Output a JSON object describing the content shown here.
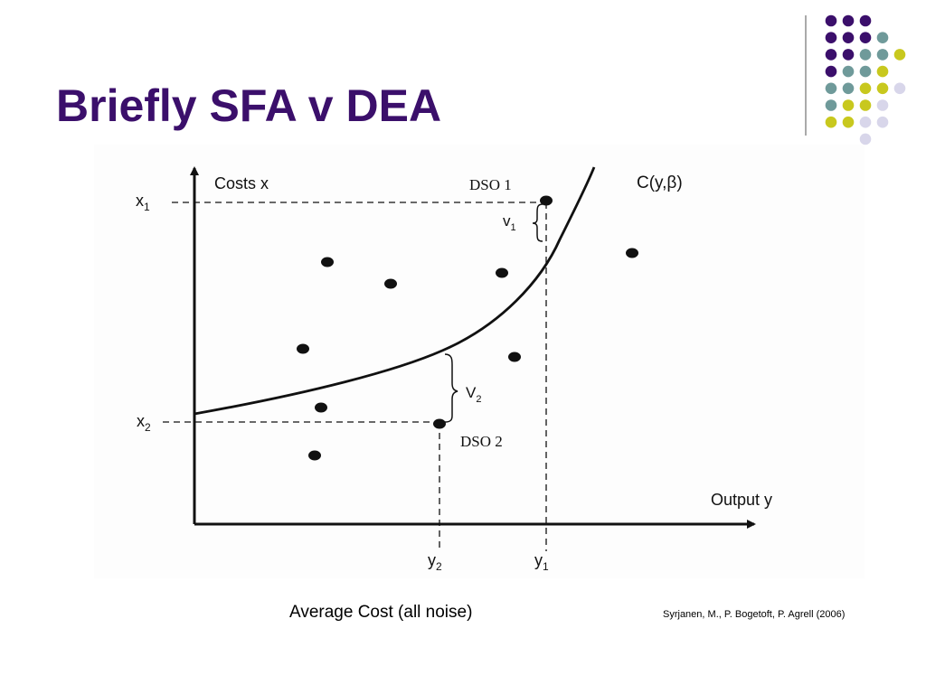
{
  "slide": {
    "title": "Briefly SFA v DEA",
    "caption": "Average Cost (all noise)",
    "citation": "Syrjanen, M., P. Bogetoft, P. Agrell (2006)"
  },
  "colors": {
    "title": "#3b0f6b",
    "dot_purple": "#3b0f6b",
    "dot_teal": "#6f9a9a",
    "dot_yellow": "#c8c81e",
    "dot_lavender": "#d8d6ea",
    "divider": "#555555"
  },
  "diagram": {
    "y_axis_label": "Costs x",
    "x_axis_label": "Output y",
    "curve_label": "C(y,β)",
    "tick_x1": "x",
    "tick_x1_sub": "1",
    "tick_x2": "x",
    "tick_x2_sub": "2",
    "tick_y1": "y",
    "tick_y1_sub": "1",
    "tick_y2": "y",
    "tick_y2_sub": "2",
    "dso1_label": "DSO 1",
    "dso2_label": "DSO 2",
    "v1_label": "v",
    "v1_sub": "1",
    "v2_label": "V",
    "v2_sub": "2",
    "point_count": 10
  }
}
